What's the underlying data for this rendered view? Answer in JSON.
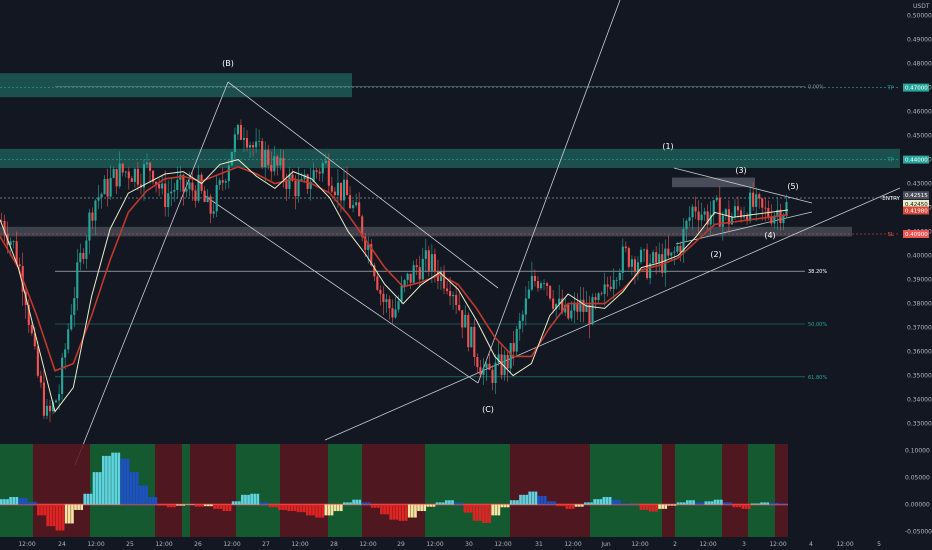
{
  "chart_data": {
    "type": "candlestick",
    "currency": "USDT",
    "price_axis": {
      "ylim": [
        0.3215,
        0.5065
      ],
      "ticks": [
        "0.50000",
        "0.49000",
        "0.48000",
        "0.47000",
        "0.46000",
        "0.45000",
        "0.44000",
        "0.43000",
        "0.42000",
        "0.41000",
        "0.40000",
        "0.39000",
        "0.38000",
        "0.37000",
        "0.36000",
        "0.35000",
        "0.34000",
        "0.33000",
        "0.32000"
      ]
    },
    "oscillator_axis": {
      "ylim": [
        -0.06,
        0.112
      ],
      "ticks": [
        "0.10000",
        "0.05000",
        "0.00000",
        "-0.05000"
      ]
    },
    "time_axis": {
      "ticks": [
        "12:00",
        "24",
        "12:00",
        "25",
        "12:00",
        "26",
        "12:00",
        "27",
        "12:00",
        "28",
        "12:00",
        "29",
        "12:00",
        "30",
        "12:00",
        "31",
        "12:00",
        "Jun",
        "12:00",
        "2",
        "12:00",
        "3",
        "12:00",
        "4",
        "12:00",
        "5"
      ]
    },
    "price_path": [
      [
        0.416,
        0.413
      ],
      [
        0.41,
        0.4
      ],
      [
        0.395,
        0.38
      ],
      [
        0.36,
        0.345
      ],
      [
        0.333,
        0.33
      ],
      [
        0.335,
        0.352
      ],
      [
        0.37,
        0.385
      ],
      [
        0.395,
        0.41
      ],
      [
        0.418,
        0.428
      ],
      [
        0.425,
        0.43
      ],
      [
        0.432,
        0.436
      ],
      [
        0.438,
        0.433
      ],
      [
        0.43,
        0.438
      ],
      [
        0.44,
        0.435
      ],
      [
        0.428,
        0.42
      ],
      [
        0.425,
        0.432
      ],
      [
        0.429,
        0.425
      ],
      [
        0.43,
        0.427
      ],
      [
        0.42,
        0.415
      ],
      [
        0.422,
        0.435
      ],
      [
        0.443,
        0.449
      ],
      [
        0.455,
        0.452
      ],
      [
        0.446,
        0.44
      ],
      [
        0.44,
        0.442
      ],
      [
        0.437,
        0.435
      ],
      [
        0.433,
        0.428
      ],
      [
        0.425,
        0.43
      ],
      [
        0.432,
        0.436
      ],
      [
        0.44,
        0.437
      ],
      [
        0.43,
        0.428
      ],
      [
        0.426,
        0.422
      ],
      [
        0.418,
        0.41
      ],
      [
        0.405,
        0.398
      ],
      [
        0.385,
        0.378
      ],
      [
        0.38,
        0.373
      ],
      [
        0.384,
        0.392
      ],
      [
        0.398,
        0.393
      ],
      [
        0.398,
        0.396
      ],
      [
        0.395,
        0.39
      ],
      [
        0.393,
        0.384
      ],
      [
        0.376,
        0.37
      ],
      [
        0.363,
        0.358
      ],
      [
        0.352,
        0.347
      ],
      [
        0.35,
        0.356
      ],
      [
        0.36,
        0.353
      ],
      [
        0.368,
        0.376
      ],
      [
        0.386,
        0.392
      ],
      [
        0.396,
        0.389
      ],
      [
        0.382,
        0.378
      ],
      [
        0.375,
        0.372
      ],
      [
        0.376,
        0.382
      ],
      [
        0.378,
        0.374
      ],
      [
        0.376,
        0.385
      ],
      [
        0.392,
        0.396
      ],
      [
        0.402,
        0.398
      ],
      [
        0.401,
        0.398
      ],
      [
        0.396,
        0.395
      ],
      [
        0.398,
        0.397
      ],
      [
        0.4,
        0.396
      ],
      [
        0.405,
        0.41
      ],
      [
        0.423,
        0.42
      ],
      [
        0.418,
        0.415
      ],
      [
        0.419,
        0.418
      ],
      [
        0.415,
        0.416
      ],
      [
        0.42,
        0.418
      ],
      [
        0.422,
        0.42
      ],
      [
        0.418,
        0.417
      ],
      [
        0.418,
        0.419
      ],
      [
        0.42,
        0.421
      ]
    ],
    "ema_fast": [
      0.415,
      0.395,
      0.365,
      0.335,
      0.345,
      0.383,
      0.411,
      0.426,
      0.43,
      0.434,
      0.435,
      0.43,
      0.438,
      0.44,
      0.433,
      0.428,
      0.435,
      0.432,
      0.424,
      0.41,
      0.4,
      0.388,
      0.38,
      0.388,
      0.393,
      0.386,
      0.373,
      0.358,
      0.35,
      0.355,
      0.375,
      0.384,
      0.379,
      0.378,
      0.385,
      0.395,
      0.397,
      0.4,
      0.408,
      0.418,
      0.416,
      0.417,
      0.418,
      0.419
    ],
    "ema_slow": [
      0.408,
      0.395,
      0.375,
      0.352,
      0.355,
      0.375,
      0.398,
      0.418,
      0.427,
      0.432,
      0.433,
      0.431,
      0.434,
      0.437,
      0.434,
      0.43,
      0.432,
      0.43,
      0.426,
      0.417,
      0.406,
      0.395,
      0.387,
      0.389,
      0.392,
      0.388,
      0.378,
      0.366,
      0.358,
      0.358,
      0.37,
      0.38,
      0.38,
      0.38,
      0.386,
      0.394,
      0.396,
      0.399,
      0.406,
      0.413,
      0.414,
      0.415,
      0.416,
      0.417
    ],
    "oscillator": [
      0.01,
      0.014,
      0.012,
      0.005,
      -0.02,
      -0.04,
      -0.048,
      -0.035,
      -0.01,
      0.02,
      0.06,
      0.09,
      0.096,
      0.085,
      0.06,
      0.035,
      0.014,
      -0.002,
      -0.005,
      -0.002,
      0.001,
      -0.004,
      -0.003,
      -0.008,
      -0.012,
      0.006,
      0.018,
      0.02,
      0.004,
      -0.005,
      -0.01,
      -0.012,
      -0.014,
      -0.02,
      -0.024,
      -0.02,
      -0.012,
      0.004,
      0.009,
      0.004,
      -0.006,
      -0.018,
      -0.028,
      -0.03,
      -0.024,
      -0.012,
      -0.004,
      0.004,
      0.008,
      0.004,
      -0.015,
      -0.03,
      -0.034,
      -0.02,
      -0.005,
      0.008,
      0.018,
      0.024,
      0.016,
      0.006,
      -0.003,
      -0.008,
      -0.004,
      0.004,
      0.01,
      0.014,
      0.009,
      0.002,
      0.001,
      -0.01,
      -0.013,
      -0.008,
      -0.002,
      0.004,
      0.008,
      0.004,
      0.006,
      0.009,
      0.004,
      -0.005,
      -0.008,
      0.002,
      0.004,
      0.003,
      0.002
    ],
    "wave_labels": [
      "(B)",
      "(C)",
      "(1)",
      "(2)",
      "(3)",
      "(4)",
      "(5)"
    ],
    "fib_labels": [
      "0.00%",
      "38.20%",
      "50.00%",
      "61.80%"
    ],
    "fib_levels": [
      0.4705,
      0.3935,
      0.3715,
      0.3495
    ],
    "price_tags": {
      "tp1": {
        "tag": "TP",
        "price": "0.47000",
        "value": 0.47
      },
      "tp2": {
        "tag": "TP",
        "price": "0.44000",
        "value": 0.44
      },
      "entry": {
        "tag": "ENTRY",
        "value": 0.424
      },
      "sl": {
        "tag": "SL",
        "price": "0.40900",
        "value": 0.409
      },
      "last": {
        "price": "0.42515",
        "value": 0.42515
      },
      "ema_fast_tag": {
        "price": "0.42450",
        "value": 0.4215
      },
      "ema_slow_tag": {
        "price": "0.41980",
        "value": 0.4188
      }
    },
    "zones": [
      {
        "name": "upper-supply",
        "from": 0.466,
        "to": 0.476
      },
      {
        "name": "mid-supply",
        "from": 0.4365,
        "to": 0.4445
      },
      {
        "name": "stop-band",
        "from": 0.408,
        "to": 0.412
      }
    ],
    "grid": false,
    "colors": {
      "background": "#131722",
      "bull": "#26a69a",
      "bear": "#ef5350",
      "ema_fast": "#e8eec8",
      "ema_slow": "#c0392b",
      "zone": "#1f5a57",
      "stop_zone": "#8a8f9c",
      "osc_bull_bg": "#166534",
      "osc_bear_bg": "#5a1820",
      "tp": "#26a69a",
      "sl": "#ef5350"
    }
  }
}
